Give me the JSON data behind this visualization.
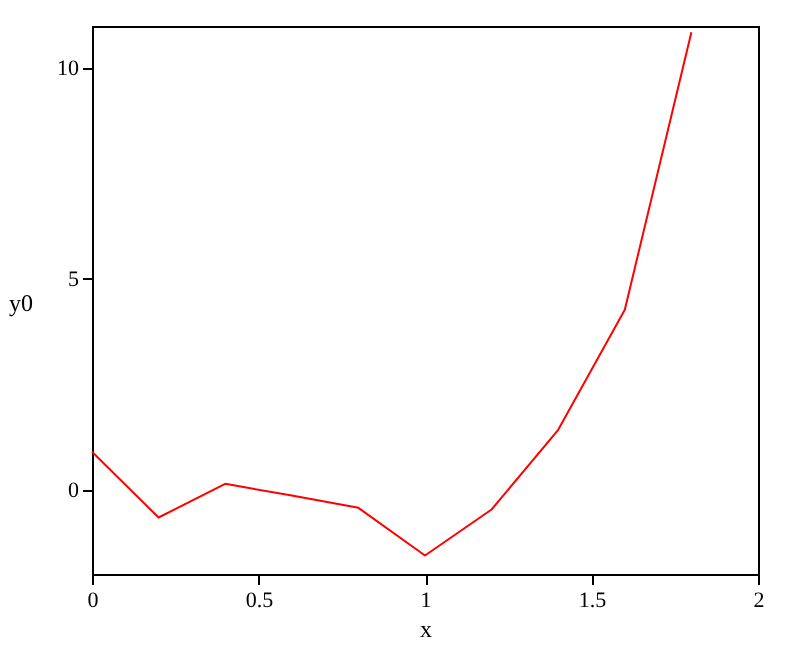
{
  "chart_data": {
    "type": "line",
    "xlabel": "x",
    "ylabel": "y0",
    "x": [
      0,
      0.2,
      0.4,
      0.6,
      0.8,
      1.0,
      1.2,
      1.4,
      1.6,
      1.8
    ],
    "series": [
      {
        "color": "#ff0000",
        "values": [
          0.9,
          -0.66,
          0.14,
          -0.14,
          -0.43,
          -1.56,
          -0.47,
          1.42,
          4.27,
          10.85
        ]
      }
    ],
    "xlim": [
      0,
      2
    ],
    "ylim": [
      -2,
      11
    ],
    "xticks": [
      0,
      0.5,
      1,
      1.5,
      2
    ],
    "yticks": [
      0,
      5,
      10
    ],
    "grid": false,
    "marker": "none",
    "line_style": "solid"
  }
}
